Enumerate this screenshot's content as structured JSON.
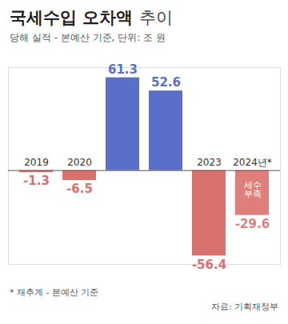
{
  "chart_data": {
    "type": "bar",
    "title": "국세수입 오차액",
    "title_suffix": "추이",
    "subtitle": "당해 실적 - 본예산 기준, 단위: 조 원",
    "categories": [
      "2019",
      "2020",
      null,
      null,
      "2023",
      "2024년*"
    ],
    "values": [
      -1.3,
      -6.5,
      61.3,
      52.6,
      -56.4,
      -29.6
    ],
    "colors": [
      "#d9716e",
      "#d9716e",
      "#5a6fca",
      "#5a6fca",
      "#d9716e",
      "#de7f7c"
    ],
    "ylim": [
      -62,
      68
    ],
    "yticks": [
      0
    ],
    "tick_labels": false,
    "grid": false,
    "data_labels": true,
    "annotations": [
      {
        "text": "세수 부족",
        "category": "2024년*"
      }
    ],
    "note": "* 재추계 - 본예산 기준",
    "source": "자료: 기획재정부"
  }
}
